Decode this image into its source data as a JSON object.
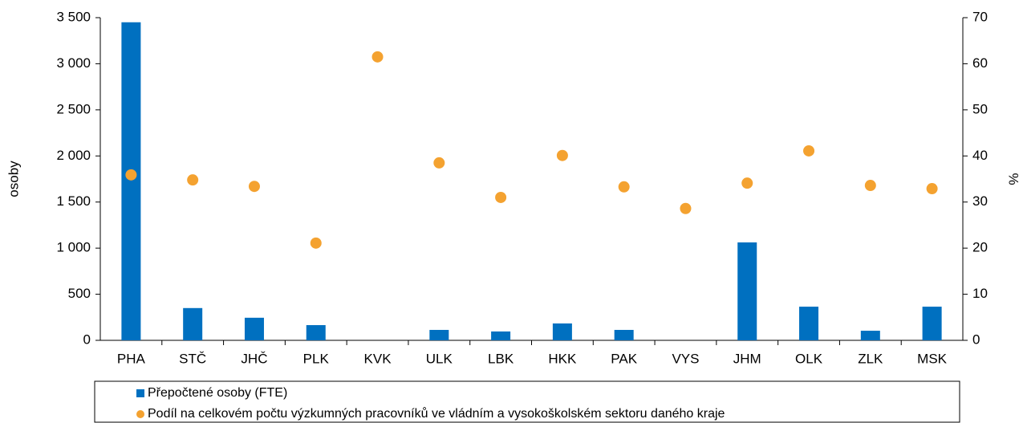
{
  "chart_data": {
    "type": "bar",
    "categories": [
      "PHA",
      "STČ",
      "JHČ",
      "PLK",
      "KVK",
      "ULK",
      "LBK",
      "HKK",
      "PAK",
      "VYS",
      "JHM",
      "OLK",
      "ZLK",
      "MSK"
    ],
    "series": [
      {
        "name": "Přepočtené osoby (FTE)",
        "type": "bar",
        "color": "#0070c0",
        "axis": "y",
        "values": [
          3450,
          350,
          245,
          165,
          0,
          113,
          96,
          183,
          113,
          0,
          1062,
          365,
          104,
          365
        ]
      },
      {
        "name": "Podíl na celkovém počtu výzkumných pracovníků ve vládním a vysokoškolském sektoru daného kraje",
        "type": "scatter",
        "color": "#f4a230",
        "axis": "y2",
        "values": [
          35.9,
          34.8,
          33.4,
          21.1,
          61.5,
          38.5,
          31.0,
          40.1,
          33.3,
          28.6,
          34.1,
          41.1,
          33.6,
          32.9
        ]
      }
    ],
    "ylabel": "osoby",
    "y2label": "%",
    "ylim": [
      0,
      3500
    ],
    "yticks": [
      0,
      500,
      {
        "value": 1000,
        "label": "1 000"
      },
      {
        "value": 1500,
        "label": "1 500"
      },
      {
        "value": 2000,
        "label": "2 000"
      },
      {
        "value": 2500,
        "label": "2 500"
      },
      {
        "value": 3000,
        "label": "3 000"
      },
      {
        "value": 3500,
        "label": "3 500"
      }
    ],
    "y2lim": [
      0,
      70
    ],
    "y2ticks": [
      0,
      10,
      20,
      30,
      40,
      50,
      60,
      70
    ],
    "grid": false
  }
}
